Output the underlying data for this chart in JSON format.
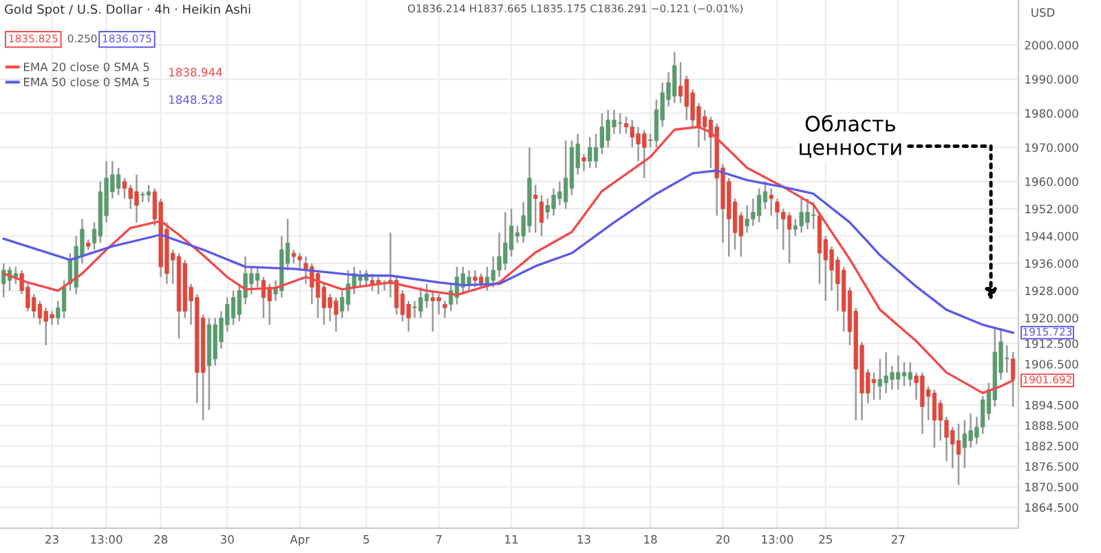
{
  "chart_data": {
    "type": "candlestick",
    "annotations": [
      "Gold Spot / U.S. Dollar · 4h · Heikin Ashi",
      "O1836.214 H1837.665 L1835.175 C1836.291 −0.121 (−0.01%)",
      "1835.825",
      "0.250",
      "1836.075",
      "1838.944",
      "1848.528",
      "Область\nценности",
      "1901.692",
      "1915.723"
    ],
    "categories": [
      null,
      null,
      null,
      null,
      null,
      null,
      null,
      null,
      "23",
      null,
      null,
      null,
      null,
      null,
      null,
      null,
      null,
      "13:00",
      null,
      null,
      null,
      null,
      null,
      null,
      null,
      null,
      "28",
      null,
      null,
      null,
      null,
      null,
      null,
      null,
      null,
      null,
      null,
      "30",
      null,
      null,
      null,
      null,
      null,
      null,
      null,
      null,
      null,
      null,
      null,
      "Apr",
      null,
      null,
      null,
      null,
      null,
      null,
      null,
      null,
      null,
      null,
      "5",
      null,
      null,
      null,
      null,
      null,
      null,
      null,
      null,
      null,
      null,
      null,
      "7",
      null,
      null,
      null,
      null,
      null,
      null,
      null,
      null,
      null,
      null,
      null,
      "11",
      null,
      null,
      null,
      null,
      null,
      null,
      null,
      null,
      null,
      null,
      null,
      "13",
      null,
      null,
      null,
      null,
      null,
      null,
      null,
      null,
      null,
      null,
      "18",
      null,
      null,
      null,
      null,
      null,
      null,
      null,
      null,
      null,
      null,
      null,
      "20",
      null,
      null,
      null,
      null,
      null,
      null,
      null,
      null,
      "13:00",
      null,
      null,
      null,
      null,
      null,
      null,
      null,
      "25",
      null,
      null,
      null,
      null,
      null,
      null,
      null,
      null,
      null,
      null,
      null,
      "27",
      null,
      null,
      null,
      null,
      null,
      null,
      null,
      null,
      null,
      null,
      null,
      null,
      null,
      null,
      null,
      null,
      null,
      null,
      null
    ],
    "ylabel": "USD",
    "ohlc": [
      [
        1930,
        1936,
        1926,
        1934
      ],
      [
        1931,
        1935,
        1928,
        1934
      ],
      [
        1932,
        1935,
        1930,
        1933
      ],
      [
        1933,
        1934,
        1927,
        1928
      ],
      [
        1929,
        1930,
        1922,
        1923
      ],
      [
        1926,
        1927,
        1920,
        1922
      ],
      [
        1924,
        1925,
        1918,
        1920
      ],
      [
        1922,
        1923,
        1912,
        1919
      ],
      [
        1921,
        1922,
        1918,
        1920
      ],
      [
        1920,
        1925,
        1918,
        1923
      ],
      [
        1922,
        1931,
        1920,
        1929
      ],
      [
        1930,
        1939,
        1928,
        1937
      ],
      [
        1929,
        1944,
        1927,
        1941
      ],
      [
        1938,
        1949,
        1936,
        1946
      ],
      [
        1942,
        1943,
        1940,
        1941
      ],
      [
        1942,
        1948,
        1940,
        1946
      ],
      [
        1944,
        1960,
        1942,
        1957
      ],
      [
        1950,
        1966,
        1948,
        1961
      ],
      [
        1957,
        1966,
        1955,
        1962
      ],
      [
        1958,
        1964,
        1956,
        1962
      ],
      [
        1960,
        1961,
        1955,
        1958
      ],
      [
        1958,
        1959,
        1952,
        1955
      ],
      [
        1957,
        1962,
        1948,
        1953
      ],
      [
        1956,
        1957,
        1954,
        1956
      ],
      [
        1956,
        1959,
        1954,
        1957
      ],
      [
        1957,
        1958,
        1947,
        1949
      ],
      [
        1954,
        1955,
        1932,
        1935
      ],
      [
        1946,
        1948,
        1930,
        1933
      ],
      [
        1939,
        1940,
        1930,
        1937
      ],
      [
        1938,
        1939,
        1914,
        1922
      ],
      [
        1936,
        1937,
        1920,
        1922
      ],
      [
        1929,
        1930,
        1918,
        1925
      ],
      [
        1926,
        1927,
        1895,
        1904
      ],
      [
        1920,
        1921,
        1890,
        1904
      ],
      [
        1906,
        1920,
        1893,
        1918
      ],
      [
        1908,
        1920,
        1906,
        1918
      ],
      [
        1913,
        1922,
        1911,
        1920
      ],
      [
        1918,
        1926,
        1916,
        1924
      ],
      [
        1920,
        1928,
        1918,
        1926
      ],
      [
        1921,
        1930,
        1919,
        1928
      ],
      [
        1926,
        1938,
        1924,
        1933
      ],
      [
        1930,
        1935,
        1927,
        1933
      ],
      [
        1931,
        1935,
        1929,
        1933
      ],
      [
        1931,
        1932,
        1920,
        1926
      ],
      [
        1929,
        1930,
        1918,
        1925
      ],
      [
        1927,
        1931,
        1925,
        1929
      ],
      [
        1928,
        1944,
        1926,
        1940
      ],
      [
        1936,
        1949,
        1934,
        1942
      ],
      [
        1939,
        1940,
        1936,
        1938
      ],
      [
        1938,
        1939,
        1934,
        1937
      ],
      [
        1936,
        1938,
        1930,
        1934
      ],
      [
        1935,
        1936,
        1924,
        1929
      ],
      [
        1933,
        1934,
        1920,
        1926
      ],
      [
        1929,
        1930,
        1918,
        1923
      ],
      [
        1926,
        1927,
        1919,
        1923
      ],
      [
        1925,
        1926,
        1916,
        1921
      ],
      [
        1922,
        1928,
        1920,
        1926
      ],
      [
        1924,
        1934,
        1922,
        1930
      ],
      [
        1929,
        1935,
        1927,
        1933
      ],
      [
        1931,
        1934,
        1929,
        1932
      ],
      [
        1931,
        1934,
        1929,
        1933
      ],
      [
        1931,
        1933,
        1928,
        1930
      ],
      [
        1931,
        1932,
        1927,
        1930
      ],
      [
        1930,
        1931,
        1928,
        1930
      ],
      [
        1931,
        1945,
        1926,
        1930
      ],
      [
        1931,
        1932,
        1921,
        1923
      ],
      [
        1927,
        1928,
        1919,
        1921
      ],
      [
        1924,
        1925,
        1916,
        1920
      ],
      [
        1923,
        1925,
        1920,
        1923
      ],
      [
        1922,
        1929,
        1920,
        1926
      ],
      [
        1925,
        1930,
        1923,
        1927
      ],
      [
        1926,
        1928,
        1916,
        1925
      ],
      [
        1926,
        1927,
        1921,
        1925
      ],
      [
        1924,
        1925,
        1920,
        1923
      ],
      [
        1924,
        1930,
        1922,
        1928
      ],
      [
        1926,
        1935,
        1924,
        1932
      ],
      [
        1929,
        1935,
        1927,
        1933
      ],
      [
        1930,
        1934,
        1928,
        1932
      ],
      [
        1932,
        1934,
        1929,
        1931
      ],
      [
        1932,
        1933,
        1929,
        1930
      ],
      [
        1930,
        1935,
        1928,
        1932
      ],
      [
        1931,
        1938,
        1929,
        1934
      ],
      [
        1934,
        1945,
        1932,
        1938
      ],
      [
        1936,
        1951,
        1934,
        1942
      ],
      [
        1940,
        1952,
        1938,
        1947
      ],
      [
        1944,
        1947,
        1942,
        1945
      ],
      [
        1944,
        1954,
        1942,
        1950
      ],
      [
        1947,
        1970,
        1945,
        1961
      ],
      [
        1956,
        1959,
        1945,
        1955
      ],
      [
        1954,
        1956,
        1944,
        1948
      ],
      [
        1951,
        1955,
        1949,
        1953
      ],
      [
        1952,
        1958,
        1950,
        1956
      ],
      [
        1955,
        1960,
        1953,
        1957
      ],
      [
        1954,
        1972,
        1952,
        1961
      ],
      [
        1958,
        1972,
        1956,
        1970
      ],
      [
        1964,
        1974,
        1962,
        1971
      ],
      [
        1967,
        1968,
        1963,
        1966
      ],
      [
        1966,
        1973,
        1964,
        1970
      ],
      [
        1966,
        1974,
        1964,
        1970
      ],
      [
        1970,
        1980,
        1968,
        1976
      ],
      [
        1972,
        1981,
        1970,
        1978
      ],
      [
        1976,
        1981,
        1974,
        1978
      ],
      [
        1977,
        1980,
        1974,
        1977
      ],
      [
        1977,
        1979,
        1974,
        1976
      ],
      [
        1976,
        1978,
        1970,
        1973
      ],
      [
        1974,
        1976,
        1966,
        1971
      ],
      [
        1974,
        1975,
        1961,
        1970
      ],
      [
        1972,
        1974,
        1970,
        1972
      ],
      [
        1972,
        1984,
        1970,
        1981
      ],
      [
        1978,
        1989,
        1976,
        1986
      ],
      [
        1984,
        1992,
        1982,
        1989
      ],
      [
        1985,
        1998,
        1983,
        1994
      ],
      [
        1988,
        1995,
        1983,
        1985
      ],
      [
        1990,
        1991,
        1978,
        1982
      ],
      [
        1986,
        1987,
        1976,
        1978
      ],
      [
        1982,
        1983,
        1970,
        1976
      ],
      [
        1979,
        1981,
        1972,
        1976
      ],
      [
        1978,
        1979,
        1964,
        1973
      ],
      [
        1976,
        1977,
        1950,
        1961
      ],
      [
        1964,
        1965,
        1942,
        1952
      ],
      [
        1960,
        1961,
        1938,
        1949
      ],
      [
        1954,
        1955,
        1940,
        1945
      ],
      [
        1950,
        1951,
        1938,
        1944
      ],
      [
        1947,
        1953,
        1945,
        1949
      ],
      [
        1949,
        1955,
        1947,
        1951
      ],
      [
        1950,
        1958,
        1948,
        1956
      ],
      [
        1954,
        1960,
        1952,
        1957
      ],
      [
        1956,
        1958,
        1950,
        1955
      ],
      [
        1954,
        1955,
        1946,
        1951
      ],
      [
        1951,
        1952,
        1940,
        1949
      ],
      [
        1950,
        1951,
        1936,
        1946
      ],
      [
        1946,
        1949,
        1944,
        1947
      ],
      [
        1947,
        1955,
        1945,
        1951
      ],
      [
        1948,
        1955,
        1946,
        1951
      ],
      [
        1950,
        1954,
        1946,
        1950
      ],
      [
        1950,
        1951,
        1930,
        1939
      ],
      [
        1943,
        1944,
        1925,
        1937
      ],
      [
        1940,
        1941,
        1928,
        1934
      ],
      [
        1937,
        1938,
        1922,
        1930
      ],
      [
        1934,
        1935,
        1916,
        1922
      ],
      [
        1928,
        1929,
        1912,
        1916
      ],
      [
        1922,
        1923,
        1890,
        1905
      ],
      [
        1912,
        1913,
        1890,
        1898
      ],
      [
        1904,
        1905,
        1895,
        1898
      ],
      [
        1902,
        1904,
        1896,
        1901
      ],
      [
        1900,
        1908,
        1896,
        1902
      ],
      [
        1901,
        1910,
        1898,
        1903
      ],
      [
        1902,
        1906,
        1899,
        1904
      ],
      [
        1902,
        1909,
        1899,
        1904
      ],
      [
        1903,
        1907,
        1900,
        1904
      ],
      [
        1902,
        1907,
        1900,
        1904
      ],
      [
        1903,
        1904,
        1896,
        1901
      ],
      [
        1903,
        1904,
        1886,
        1894
      ],
      [
        1899,
        1900,
        1890,
        1897
      ],
      [
        1898,
        1899,
        1882,
        1890
      ],
      [
        1895,
        1896,
        1884,
        1890
      ],
      [
        1890,
        1891,
        1878,
        1885
      ],
      [
        1887,
        1888,
        1876,
        1883
      ],
      [
        1884,
        1889,
        1871,
        1880
      ],
      [
        1882,
        1890,
        1876,
        1886
      ],
      [
        1884,
        1892,
        1882,
        1887
      ],
      [
        1885,
        1891,
        1883,
        1888
      ],
      [
        1888,
        1897,
        1886,
        1896
      ],
      [
        1892,
        1901,
        1890,
        1899
      ],
      [
        1896,
        1917,
        1894,
        1910
      ],
      [
        1904,
        1917,
        1902,
        1913
      ],
      [
        1908,
        1912,
        1904,
        1908
      ],
      [
        1908,
        1910,
        1894,
        1902
      ]
    ],
    "series": [
      {
        "name": "EMA 20 close 0 SMA 5",
        "type": "line",
        "color": "#f04a4a",
        "values": [
          1933,
          null,
          null,
          null,
          1930.4,
          null,
          null,
          null,
          null,
          1928,
          null,
          null,
          null,
          1933,
          null,
          null,
          null,
          1940,
          null,
          null,
          null,
          1946.4,
          null,
          null,
          null,
          null,
          1948.4,
          null,
          null,
          1944.4,
          null,
          null,
          null,
          1938.4,
          null,
          null,
          null,
          1932,
          null,
          null,
          1928.4,
          null,
          null,
          null,
          null,
          1928.8,
          null,
          null,
          null,
          null,
          1932,
          null,
          null,
          null,
          null,
          null,
          1928.4,
          null,
          null,
          1929.2,
          null,
          null,
          null,
          null,
          1930.4,
          null,
          null,
          null,
          null,
          null,
          1928,
          null,
          null,
          null,
          null,
          1926.8,
          null,
          null,
          null,
          null,
          null,
          null,
          1930.4,
          null,
          null,
          null,
          null,
          null,
          1939.2,
          null,
          null,
          null,
          null,
          null,
          1945.2,
          null,
          null,
          null,
          null,
          1957.2,
          null,
          null,
          null,
          null,
          null,
          null,
          null,
          1967.2,
          null,
          null,
          null,
          1975.2,
          null,
          null,
          null,
          1976,
          null,
          1974.4,
          null,
          null,
          null,
          null,
          null,
          1964,
          null,
          null,
          null,
          null,
          null,
          1958.4,
          null,
          null,
          null,
          null,
          1953.2,
          null,
          null,
          null,
          null,
          null,
          1937.2,
          null,
          null,
          null,
          null,
          1922.4,
          null,
          null,
          null,
          null,
          null,
          1913.2,
          null,
          null,
          null,
          null,
          1904,
          null,
          null,
          null,
          null,
          null,
          1898,
          null,
          null,
          1900,
          null,
          1901.7
        ]
      },
      {
        "name": "EMA 50 close 0 SMA 5",
        "type": "line",
        "color": "#5a5ae6",
        "values": [
          1943.2,
          null,
          null,
          null,
          null,
          null,
          null,
          null,
          null,
          null,
          null,
          1937,
          null,
          null,
          null,
          null,
          null,
          null,
          1941,
          null,
          null,
          null,
          null,
          null,
          null,
          null,
          1944.4,
          null,
          null,
          null,
          null,
          null,
          null,
          1940,
          null,
          null,
          null,
          null,
          null,
          null,
          1935,
          null,
          null,
          null,
          null,
          null,
          null,
          null,
          1934.4,
          null,
          null,
          null,
          null,
          null,
          null,
          null,
          null,
          null,
          null,
          1932.4,
          null,
          null,
          null,
          null,
          1932.4,
          null,
          null,
          null,
          null,
          null,
          null,
          null,
          1930.4,
          null,
          null,
          null,
          1929.6,
          null,
          null,
          null,
          null,
          null,
          1930,
          null,
          null,
          null,
          null,
          null,
          1935.2,
          null,
          null,
          null,
          null,
          null,
          1939,
          null,
          null,
          null,
          null,
          null,
          null,
          1948,
          null,
          null,
          null,
          null,
          null,
          null,
          1956.4,
          null,
          null,
          null,
          null,
          null,
          1962.4,
          null,
          null,
          null,
          1963.2,
          null,
          null,
          null,
          null,
          1960.4,
          null,
          null,
          null,
          null,
          null,
          1958.4,
          null,
          null,
          null,
          null,
          1956.4,
          null,
          null,
          null,
          null,
          null,
          1948,
          null,
          null,
          null,
          null,
          1938.4,
          null,
          null,
          null,
          null,
          null,
          1929.2,
          null,
          null,
          null,
          null,
          1922.4,
          null,
          null,
          null,
          null,
          null,
          1918,
          null,
          null,
          null,
          null,
          1915.7
        ]
      }
    ],
    "ylim": [
      1858.4,
      2013.2
    ],
    "yticks": [
      {
        "value": 2000,
        "label": "2000.000"
      },
      {
        "value": 1990,
        "label": "1990.000"
      },
      {
        "value": 1980,
        "label": "1980.000"
      },
      {
        "value": 1970,
        "label": "1970.000"
      },
      {
        "value": 1960,
        "label": "1960.000"
      },
      {
        "value": 1952,
        "label": "1952.000"
      },
      {
        "value": 1944,
        "label": "1944.000"
      },
      {
        "value": 1936,
        "label": "1936.000"
      },
      {
        "value": 1928,
        "label": "1928.000"
      },
      {
        "value": 1920,
        "label": "1920.000"
      },
      {
        "value": 1912.5,
        "label": "1912.500"
      },
      {
        "value": 1906.5,
        "label": "1906.500"
      },
      {
        "value": 1900.5,
        "label": null
      },
      {
        "value": 1894.5,
        "label": "1894.500"
      },
      {
        "value": 1888.5,
        "label": "1888.500"
      },
      {
        "value": 1882.5,
        "label": "1882.500"
      },
      {
        "value": 1876.5,
        "label": "1876.500"
      },
      {
        "value": 1870.5,
        "label": "1870.500"
      },
      {
        "value": 1864.5,
        "label": "1864.500"
      }
    ],
    "grid": true,
    "legend": "top left"
  }
}
